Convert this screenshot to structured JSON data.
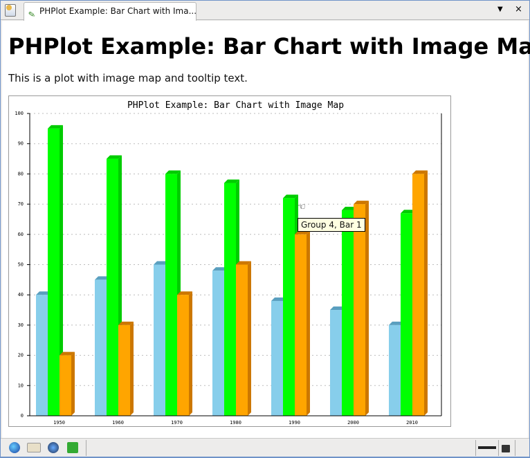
{
  "tab": {
    "title": "PHPlot Example: Bar Chart with Ima...",
    "menu_icon": "▼",
    "close_icon": "×"
  },
  "page": {
    "heading": "PHPlot Example: Bar Chart with Image Map",
    "intro": "This is a plot with image map and tooltip text."
  },
  "tooltip": "Group 4, Bar 1",
  "chart_data": {
    "type": "bar",
    "title": "PHPlot Example: Bar Chart with Image Map",
    "categories": [
      "1950",
      "1960",
      "1970",
      "1980",
      "1990",
      "2000",
      "2010"
    ],
    "series": [
      {
        "values": [
          40,
          45,
          50,
          48,
          38,
          35,
          30
        ],
        "color": "#87ceeb",
        "shade": "#5a9fbf"
      },
      {
        "values": [
          95,
          85,
          80,
          77,
          72,
          68,
          67
        ],
        "color": "#00ff00",
        "shade": "#00cc00"
      },
      {
        "values": [
          20,
          30,
          40,
          50,
          60,
          70,
          80
        ],
        "color": "#ffa500",
        "shade": "#cc7700"
      }
    ],
    "ylim": [
      0,
      100
    ],
    "yticks": [
      0,
      10,
      20,
      30,
      40,
      50,
      60,
      70,
      80,
      90,
      100
    ],
    "grid": true,
    "shading": "3d"
  },
  "statusbar": {
    "icons": [
      "globe-icon",
      "mail-icon",
      "composer-icon",
      "addressbook-icon",
      "online-icon",
      "lock-icon"
    ]
  }
}
